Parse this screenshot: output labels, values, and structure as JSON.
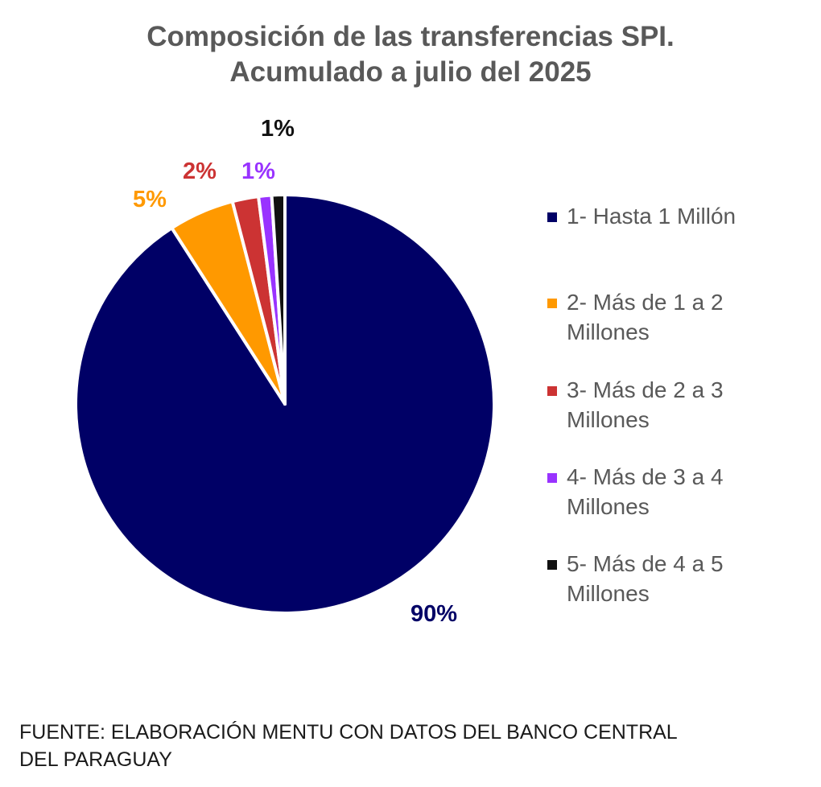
{
  "title": {
    "line1": "Composición de las transferencias SPI.",
    "line2": "Acumulado a julio del 2025"
  },
  "chart_data": {
    "type": "pie",
    "title": "Composición de las transferencias SPI. Acumulado a julio del 2025",
    "start_angle_deg": 0,
    "direction": "clockwise",
    "legend_position": "right",
    "categories": [
      "1- Hasta 1 Millón",
      "2- Más de 1 a 2 Millones",
      "3- Más de 2 a 3 Millones",
      "4- Más de 3 a 4 Millones",
      "5- Más de 4 a 5 Millones"
    ],
    "values": [
      90,
      5,
      2,
      1,
      1
    ],
    "data_labels": [
      "90%",
      "5%",
      "2%",
      "1%",
      "1%"
    ],
    "colors": [
      "#000066",
      "#FF9900",
      "#CC3333",
      "#9933FF",
      "#111111"
    ]
  },
  "legend": {
    "items": [
      {
        "line1": "1- Hasta 1 Millón",
        "line2": ""
      },
      {
        "line1": "2- Más de 1 a 2",
        "line2": "Millones"
      },
      {
        "line1": "3- Más de 2 a 3",
        "line2": "Millones"
      },
      {
        "line1": "4- Más de 3 a 4",
        "line2": "Millones"
      },
      {
        "line1": "5- Más de 4 a 5",
        "line2": "Millones"
      }
    ]
  },
  "source": {
    "line1": "FUENTE: ELABORACIÓN MENTU CON DATOS DEL BANCO CENTRAL",
    "line2": "DEL PARAGUAY"
  }
}
